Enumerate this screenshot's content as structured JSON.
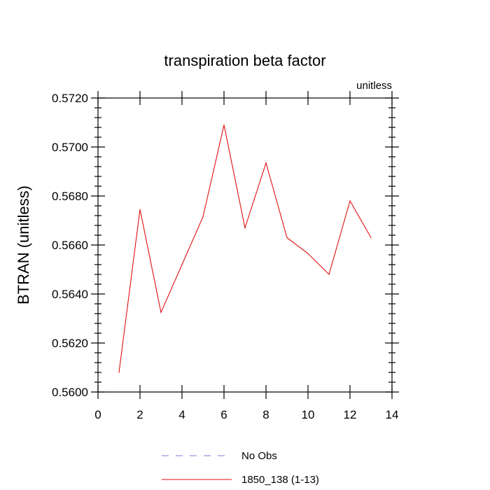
{
  "chart_data": {
    "type": "line",
    "title": "transpiration beta factor",
    "subtitle_right": "unitless",
    "xlabel": "",
    "ylabel": "BTRAN  (unitless)",
    "xlim": [
      0,
      14
    ],
    "ylim": [
      0.56,
      0.572
    ],
    "xticks": [
      "0",
      "2",
      "4",
      "6",
      "8",
      "10",
      "12",
      "14"
    ],
    "yticks": [
      "0.5600",
      "0.5620",
      "0.5640",
      "0.5660",
      "0.5680",
      "0.5700",
      "0.5720"
    ],
    "grid": false,
    "legend_placement": "bottom",
    "series": [
      {
        "name": "No Obs",
        "color": "#7b7bd8",
        "dash": "dashed",
        "x": [],
        "y": []
      },
      {
        "name": "1850_138 (1-13)",
        "color": "#e01010",
        "dash": "solid",
        "x": [
          1,
          2,
          3,
          4,
          5,
          6,
          7,
          8,
          9,
          10,
          11,
          12,
          13
        ],
        "y": [
          0.5608,
          0.56745,
          0.56325,
          0.5652,
          0.56715,
          0.5709,
          0.5667,
          0.56935,
          0.5663,
          0.56565,
          0.5648,
          0.5678,
          0.5663
        ]
      }
    ]
  }
}
